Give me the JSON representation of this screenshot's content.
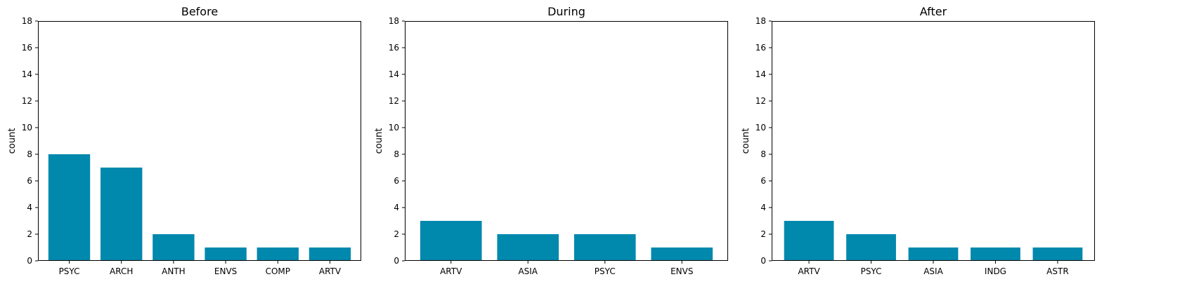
{
  "colors": {
    "bar": "#0088ad",
    "axis": "#000000",
    "background": "#ffffff"
  },
  "chart_data": [
    {
      "type": "bar",
      "title": "Before",
      "xlabel": "",
      "ylabel": "count",
      "ylim": [
        0,
        18
      ],
      "yticks": [
        "0",
        "2",
        "4",
        "6",
        "8",
        "10",
        "12",
        "14",
        "16",
        "18"
      ],
      "grid": false,
      "categories": [
        "PSYC",
        "ARCH",
        "ANTH",
        "ENVS",
        "COMP",
        "ARTV"
      ],
      "values": [
        8,
        7,
        2,
        1,
        1,
        1
      ]
    },
    {
      "type": "bar",
      "title": "During",
      "xlabel": "",
      "ylabel": "count",
      "ylim": [
        0,
        18
      ],
      "yticks": [
        "0",
        "2",
        "4",
        "6",
        "8",
        "10",
        "12",
        "14",
        "16",
        "18"
      ],
      "grid": false,
      "categories": [
        "ARTV",
        "ASIA",
        "PSYC",
        "ENVS"
      ],
      "values": [
        3,
        2,
        2,
        1
      ]
    },
    {
      "type": "bar",
      "title": "After",
      "xlabel": "",
      "ylabel": "count",
      "ylim": [
        0,
        18
      ],
      "yticks": [
        "0",
        "2",
        "4",
        "6",
        "8",
        "10",
        "12",
        "14",
        "16",
        "18"
      ],
      "grid": false,
      "categories": [
        "ARTV",
        "PSYC",
        "ASIA",
        "INDG",
        "ASTR"
      ],
      "values": [
        3,
        2,
        1,
        1,
        1
      ]
    }
  ]
}
